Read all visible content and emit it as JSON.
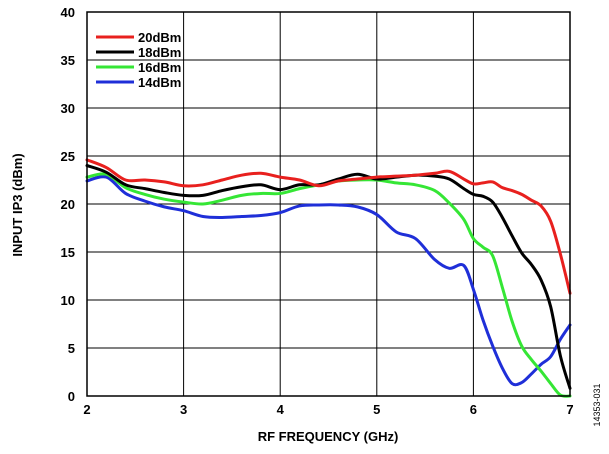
{
  "chart_data": {
    "type": "line",
    "title": "",
    "xlabel": "RF FREQUENCY (GHz)",
    "ylabel": "INPUT IP3 (dBm)",
    "xlim": [
      2,
      7
    ],
    "ylim": [
      0,
      40
    ],
    "xticks": [
      2,
      3,
      4,
      5,
      6,
      7
    ],
    "yticks": [
      0,
      5,
      10,
      15,
      20,
      25,
      30,
      35,
      40
    ],
    "grid": true,
    "legend_position": "top-left",
    "figure_id": "14353-031",
    "series": [
      {
        "name": "20dBm",
        "color": "#e8201e",
        "x": [
          2.0,
          2.2,
          2.4,
          2.6,
          2.8,
          3.0,
          3.2,
          3.4,
          3.6,
          3.8,
          4.0,
          4.2,
          4.4,
          4.6,
          4.8,
          5.0,
          5.2,
          5.4,
          5.6,
          5.75,
          5.9,
          6.0,
          6.1,
          6.2,
          6.3,
          6.4,
          6.5,
          6.6,
          6.7,
          6.8,
          6.9,
          7.0
        ],
        "y": [
          24.6,
          23.8,
          22.5,
          22.5,
          22.3,
          21.9,
          22.0,
          22.5,
          23.0,
          23.2,
          22.8,
          22.5,
          21.9,
          22.4,
          22.6,
          22.8,
          22.9,
          23.0,
          23.2,
          23.4,
          22.6,
          22.1,
          22.2,
          22.3,
          21.7,
          21.4,
          21.0,
          20.4,
          19.8,
          18.2,
          14.8,
          10.7
        ]
      },
      {
        "name": "18dBm",
        "color": "#000000",
        "x": [
          2.0,
          2.2,
          2.4,
          2.6,
          2.8,
          3.0,
          3.2,
          3.4,
          3.6,
          3.8,
          4.0,
          4.2,
          4.4,
          4.6,
          4.8,
          5.0,
          5.2,
          5.4,
          5.6,
          5.75,
          5.9,
          6.0,
          6.1,
          6.2,
          6.3,
          6.4,
          6.5,
          6.6,
          6.7,
          6.8,
          6.9,
          7.0
        ],
        "y": [
          24.0,
          23.3,
          22.0,
          21.6,
          21.2,
          20.9,
          20.9,
          21.4,
          21.8,
          22.0,
          21.5,
          22.0,
          22.0,
          22.6,
          23.1,
          22.6,
          22.8,
          23.0,
          22.9,
          22.6,
          21.6,
          21.0,
          20.8,
          20.2,
          18.6,
          16.7,
          14.9,
          13.7,
          12.1,
          9.3,
          4.2,
          0.8
        ]
      },
      {
        "name": "16dBm",
        "color": "#35e635",
        "x": [
          2.0,
          2.2,
          2.4,
          2.6,
          2.8,
          3.0,
          3.2,
          3.4,
          3.6,
          3.8,
          4.0,
          4.2,
          4.4,
          4.6,
          4.8,
          5.0,
          5.2,
          5.4,
          5.6,
          5.75,
          5.9,
          6.0,
          6.1,
          6.2,
          6.3,
          6.4,
          6.5,
          6.6,
          6.7,
          6.8,
          6.9,
          7.0
        ],
        "y": [
          22.8,
          23.1,
          21.7,
          21.0,
          20.5,
          20.2,
          20.0,
          20.4,
          20.9,
          21.1,
          21.1,
          21.6,
          22.0,
          22.4,
          22.5,
          22.5,
          22.2,
          22.0,
          21.4,
          20.1,
          18.4,
          16.4,
          15.5,
          14.6,
          11.3,
          7.8,
          5.2,
          3.8,
          2.6,
          1.3,
          0.1,
          0.0
        ]
      },
      {
        "name": "14dBm",
        "color": "#1f2fd8",
        "x": [
          2.0,
          2.2,
          2.4,
          2.6,
          2.8,
          3.0,
          3.2,
          3.4,
          3.6,
          3.8,
          4.0,
          4.2,
          4.4,
          4.6,
          4.8,
          5.0,
          5.2,
          5.4,
          5.6,
          5.75,
          5.9,
          6.0,
          6.1,
          6.2,
          6.3,
          6.4,
          6.5,
          6.6,
          6.7,
          6.8,
          6.9,
          7.0
        ],
        "y": [
          22.4,
          22.8,
          21.1,
          20.3,
          19.7,
          19.3,
          18.7,
          18.6,
          18.7,
          18.8,
          19.1,
          19.8,
          19.9,
          19.9,
          19.7,
          18.9,
          17.1,
          16.4,
          14.2,
          13.3,
          13.6,
          11.1,
          7.9,
          5.2,
          2.9,
          1.3,
          1.4,
          2.3,
          3.3,
          4.1,
          5.9,
          7.4
        ]
      }
    ]
  }
}
